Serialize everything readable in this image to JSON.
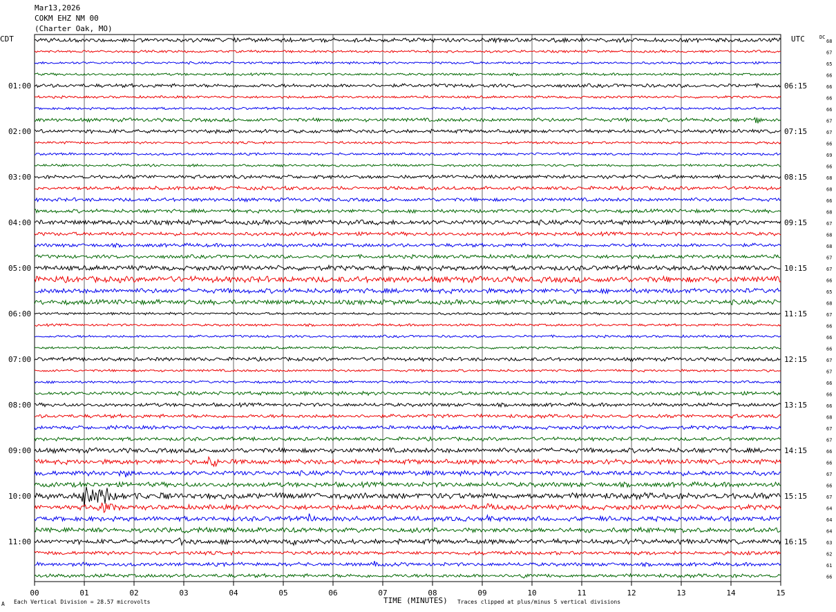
{
  "header": {
    "date": "Mar13,2026",
    "station": "COKM EHZ NM 00",
    "location": "(Charter Oak, MO)"
  },
  "left_zone": "CDT",
  "right_zone": "UTC",
  "dc_header": "DC",
  "footer": {
    "corner_mark": "A",
    "scale": "Each Vertical Division =   28.57 microvolts",
    "clip_note": "Traces clipped at plus/minus 5 vertical divisions"
  },
  "colors": {
    "trace_cycle": [
      "#000000",
      "#ee0000",
      "#0000ee",
      "#006600"
    ],
    "grid": "#000000"
  },
  "chart_data": {
    "type": "line",
    "title": "COKM EHZ NM 00",
    "xlabel": "TIME (MINUTES)",
    "ylabel": "",
    "x_range": [
      0,
      15
    ],
    "x_ticks": [
      "00",
      "01",
      "02",
      "03",
      "04",
      "05",
      "06",
      "07",
      "08",
      "09",
      "10",
      "11",
      "12",
      "13",
      "14",
      "15"
    ],
    "trace_count": 48,
    "trace_minutes": 15,
    "left_time_labels": [
      {
        "label": "01:00",
        "trace": 4
      },
      {
        "label": "02:00",
        "trace": 8
      },
      {
        "label": "03:00",
        "trace": 12
      },
      {
        "label": "04:00",
        "trace": 16
      },
      {
        "label": "05:00",
        "trace": 20
      },
      {
        "label": "06:00",
        "trace": 24
      },
      {
        "label": "07:00",
        "trace": 28
      },
      {
        "label": "08:00",
        "trace": 32
      },
      {
        "label": "09:00",
        "trace": 36
      },
      {
        "label": "10:00",
        "trace": 40
      },
      {
        "label": "11:00",
        "trace": 44
      }
    ],
    "right_time_labels": [
      {
        "label": "06:15",
        "trace": 4
      },
      {
        "label": "07:15",
        "trace": 8
      },
      {
        "label": "08:15",
        "trace": 12
      },
      {
        "label": "09:15",
        "trace": 16
      },
      {
        "label": "10:15",
        "trace": 20
      },
      {
        "label": "11:15",
        "trace": 24
      },
      {
        "label": "12:15",
        "trace": 28
      },
      {
        "label": "13:15",
        "trace": 32
      },
      {
        "label": "14:15",
        "trace": 36
      },
      {
        "label": "15:15",
        "trace": 40
      },
      {
        "label": "16:15",
        "trace": 44
      }
    ],
    "dc_offsets": [
      68,
      67,
      65,
      66,
      66,
      66,
      66,
      67,
      67,
      66,
      69,
      66,
      68,
      68,
      66,
      68,
      67,
      68,
      68,
      67,
      67,
      66,
      65,
      68,
      67,
      66,
      66,
      66,
      67,
      67,
      66,
      66,
      66,
      68,
      67,
      67,
      66,
      66,
      67,
      66,
      67,
      64,
      64,
      64,
      63,
      62,
      61,
      66
    ],
    "trace_amplitude": [
      3.5,
      2,
      2,
      2,
      3,
      2,
      2,
      3,
      3,
      2,
      2,
      2,
      3,
      3,
      3,
      3,
      4,
      3,
      3,
      3,
      4,
      5,
      4,
      4,
      2,
      2,
      2,
      2,
      3,
      2,
      2,
      3,
      3,
      3,
      3,
      3,
      4,
      4,
      4,
      4,
      5,
      4,
      4,
      4,
      4,
      3,
      3,
      3
    ],
    "events": [
      {
        "trace": 7,
        "minute": 14.5,
        "amplitude": 12,
        "duration": 0.3
      },
      {
        "trace": 13,
        "minute": 9.0,
        "amplitude": 4,
        "duration": 1.0
      },
      {
        "trace": 33,
        "minute": 8.3,
        "amplitude": 4,
        "duration": 0.5
      },
      {
        "trace": 34,
        "minute": 1.45,
        "amplitude": 6,
        "duration": 0.3
      },
      {
        "trace": 37,
        "minute": 3.5,
        "amplitude": 10,
        "duration": 1.0
      },
      {
        "trace": 38,
        "minute": 1.7,
        "amplitude": 10,
        "duration": 0.8
      },
      {
        "trace": 40,
        "minute": 1.0,
        "amplitude": 25,
        "duration": 1.6
      },
      {
        "trace": 41,
        "minute": 1.3,
        "amplitude": 14,
        "duration": 0.8
      },
      {
        "trace": 41,
        "minute": 9.1,
        "amplitude": 7,
        "duration": 1.0
      },
      {
        "trace": 42,
        "minute": 5.5,
        "amplitude": 9,
        "duration": 0.8
      },
      {
        "trace": 42,
        "minute": 9.1,
        "amplitude": 7,
        "duration": 0.4
      },
      {
        "trace": 42,
        "minute": 12.9,
        "amplitude": 7,
        "duration": 0.4
      },
      {
        "trace": 44,
        "minute": 2.9,
        "amplitude": 12,
        "duration": 0.3
      },
      {
        "trace": 44,
        "minute": 5.2,
        "amplitude": 8,
        "duration": 0.4
      },
      {
        "trace": 46,
        "minute": 6.8,
        "amplitude": 6,
        "duration": 0.7
      },
      {
        "trace": 47,
        "minute": 9.8,
        "amplitude": 7,
        "duration": 0.3
      }
    ]
  }
}
